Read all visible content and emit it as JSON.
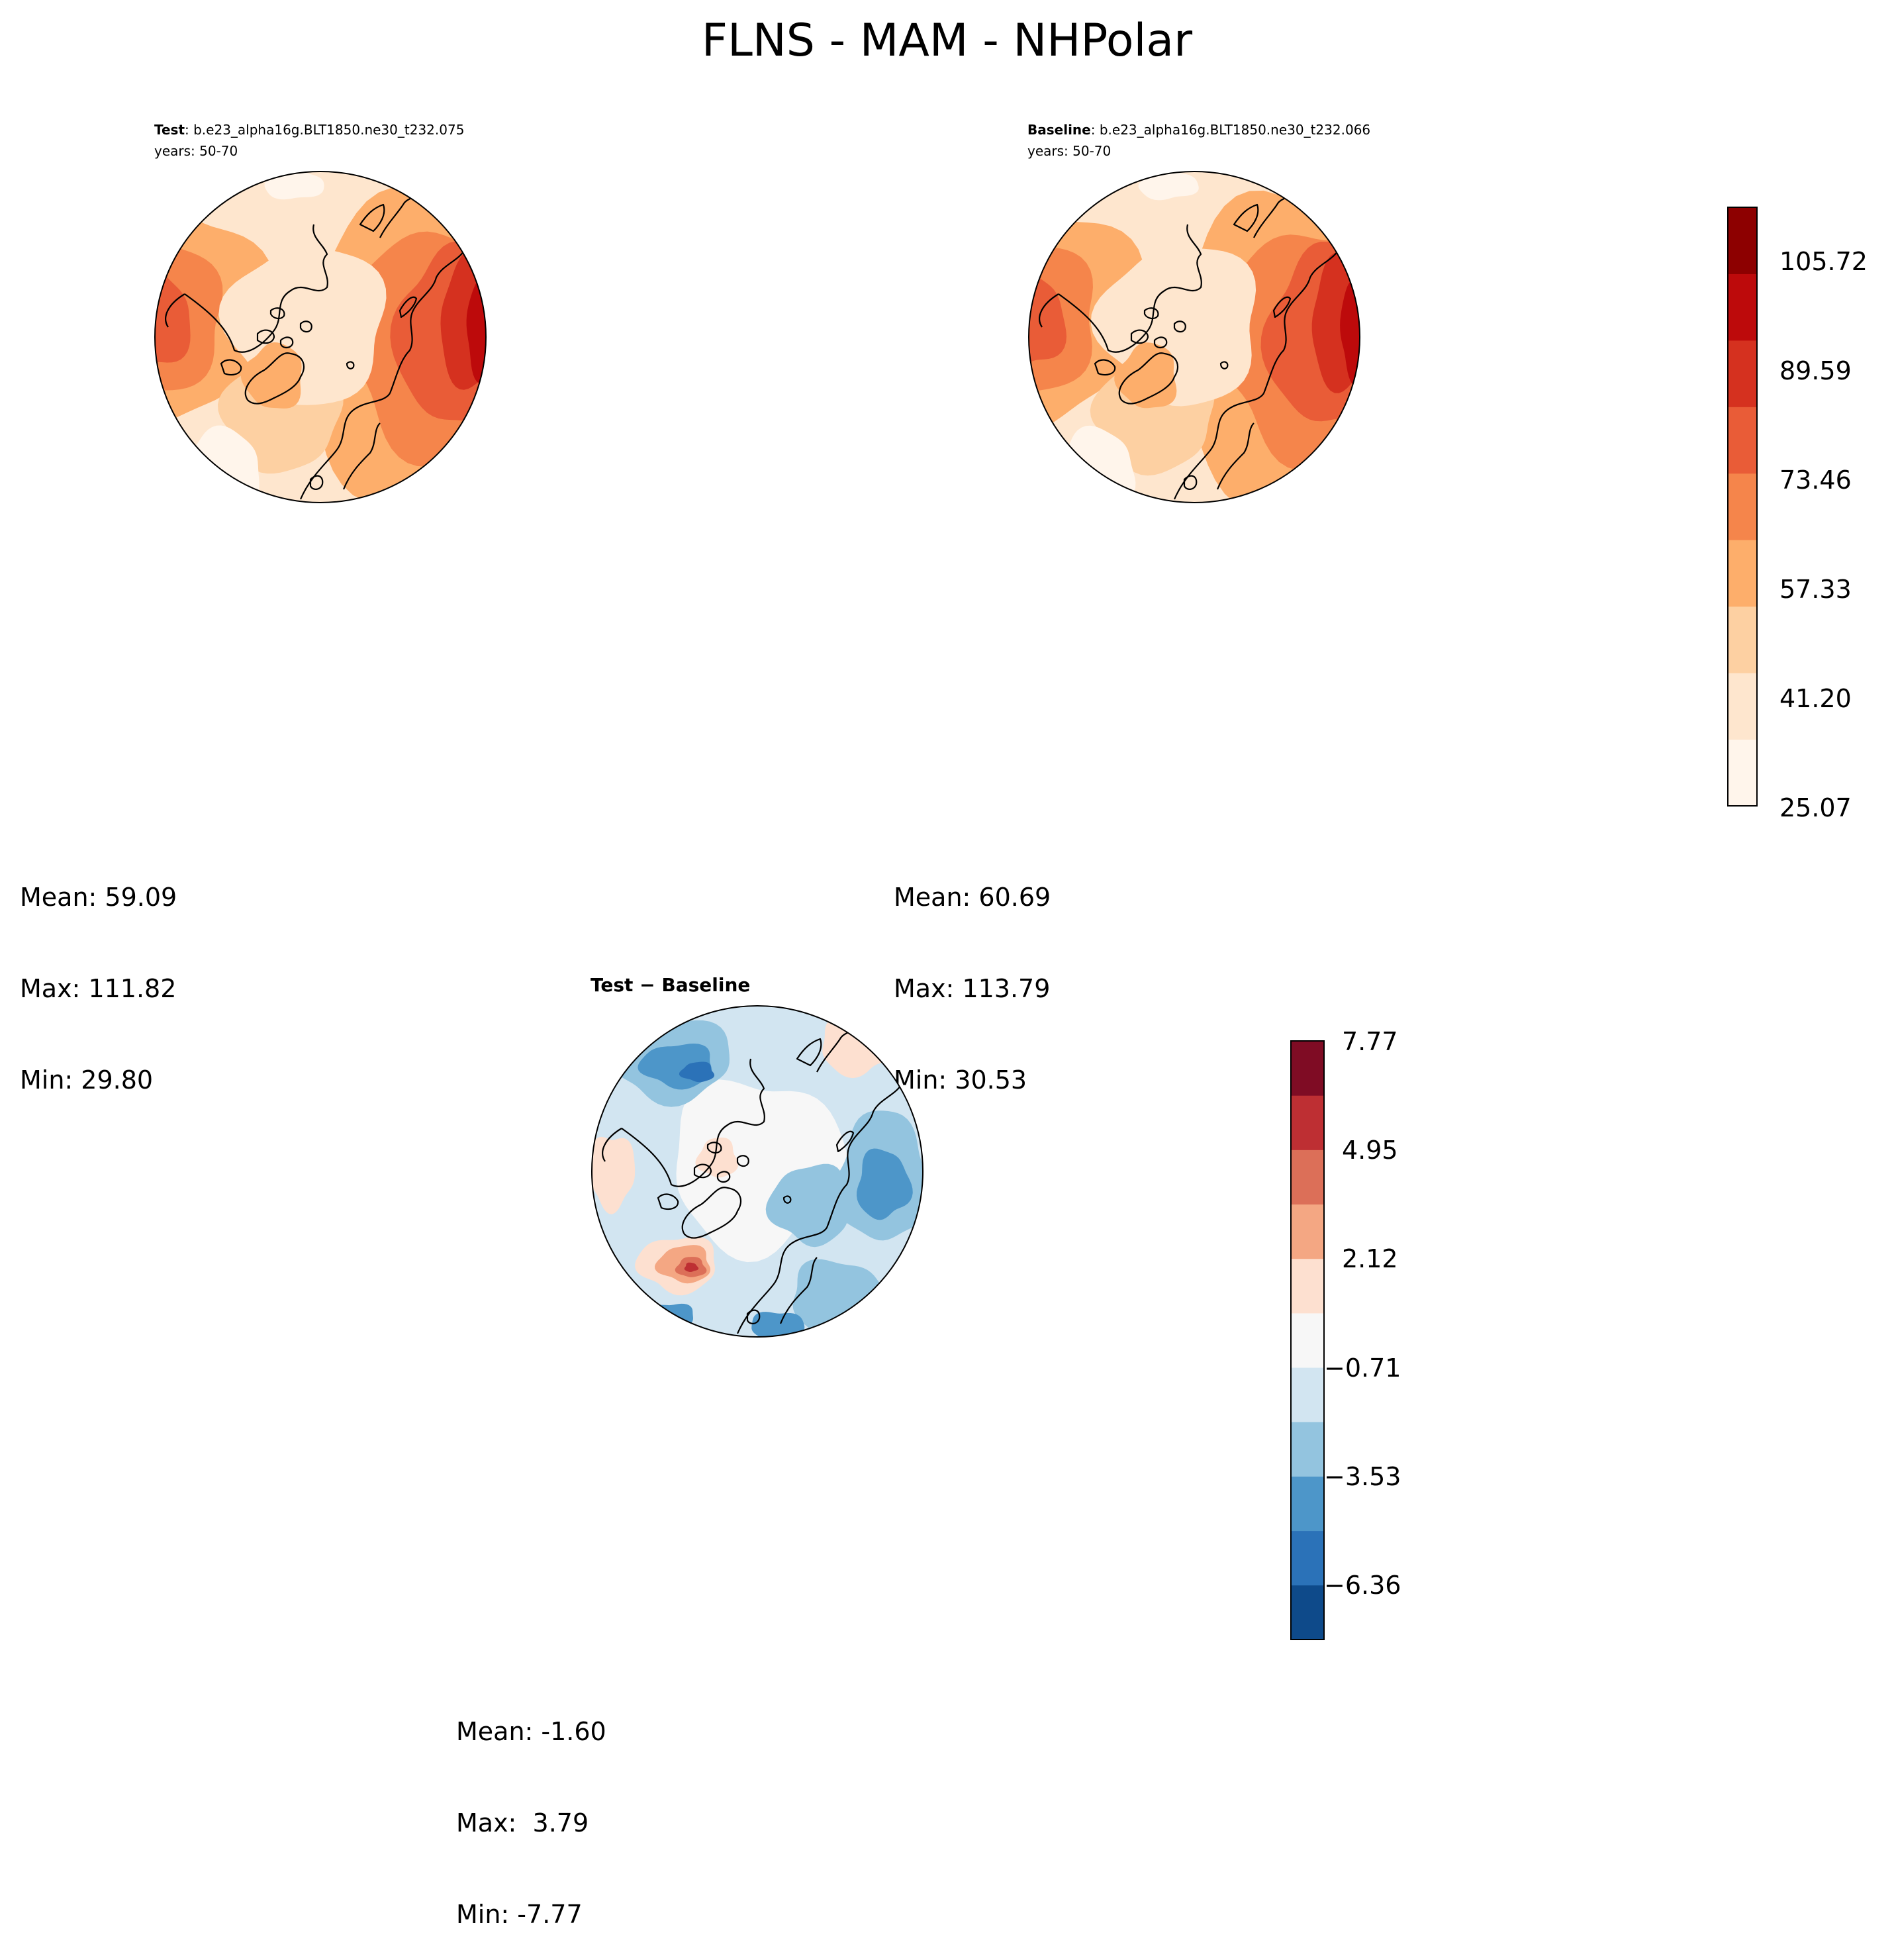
{
  "title": "FLNS - MAM - NHPolar",
  "panels": [
    {
      "id": "test",
      "label": "Test",
      "case": ": b.e23_alpha16g.BLT1850.ne30_t232.075",
      "years": "years: 50-70",
      "stats": {
        "mean": "Mean: 59.09",
        "max": "Max: 111.82",
        "min": "Min: 29.80"
      }
    },
    {
      "id": "baseline",
      "label": "Baseline",
      "case": ": b.e23_alpha16g.BLT1850.ne30_t232.066",
      "years": "years: 50-70",
      "stats": {
        "mean": "Mean: 60.69",
        "max": "Max: 113.79",
        "min": "Min: 30.53"
      }
    },
    {
      "id": "diff",
      "label": "Test − Baseline",
      "stats": {
        "mean": "Mean: -1.60",
        "max": "Max:  3.79",
        "min": "Min: -7.77"
      }
    }
  ],
  "colorbars": {
    "main": {
      "ticks": [
        "105.72",
        "89.59",
        "73.46",
        "57.33",
        "41.20",
        "25.07"
      ],
      "colors": [
        "#fff5eb",
        "#fee6ce",
        "#fdd0a2",
        "#fdae6b",
        "#f5854b",
        "#e95c37",
        "#d5311f",
        "#bd0a0b",
        "#8d0000"
      ]
    },
    "diff": {
      "ticks": [
        "7.77",
        "4.95",
        "2.12",
        "−0.71",
        "−3.53",
        "−6.36"
      ],
      "colors": [
        "#0e4a8a",
        "#2b72b8",
        "#4d96c9",
        "#93c4df",
        "#d2e5f1",
        "#f7f7f7",
        "#fde0d0",
        "#f4a783",
        "#dc6f58",
        "#be2f33",
        "#7f0c24"
      ]
    }
  }
}
